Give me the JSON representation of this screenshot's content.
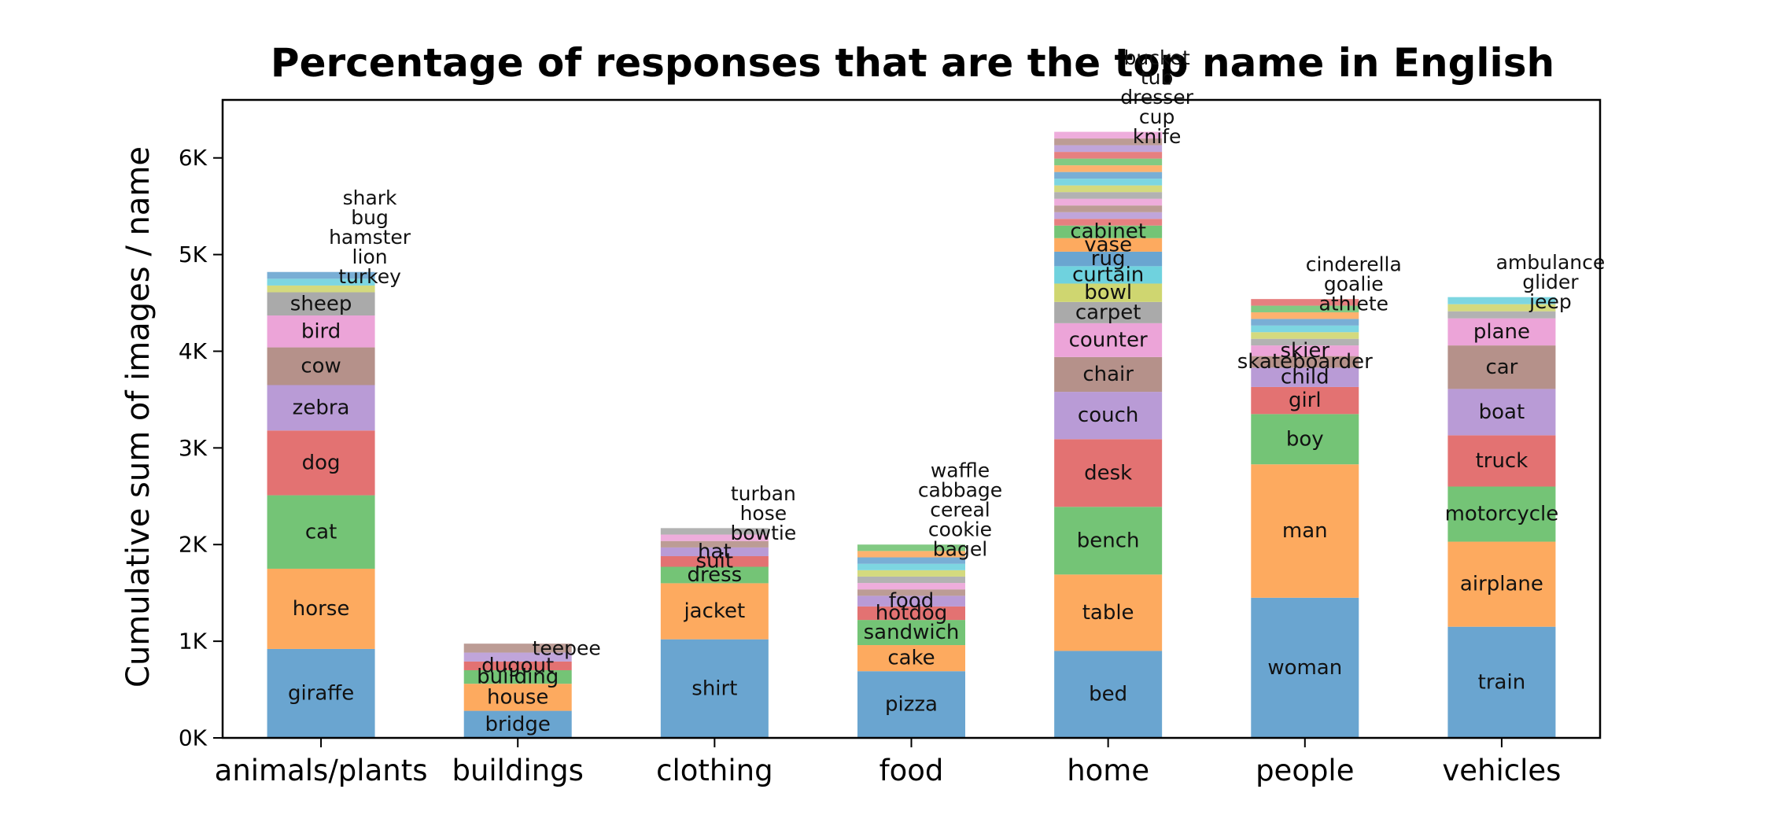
{
  "chart_data": {
    "type": "bar",
    "stacked": true,
    "title": "Percentage of responses that are the top name in English",
    "xlabel": "",
    "ylabel": "Cumulative sum of images / name",
    "ylim": [
      0,
      6600
    ],
    "yticks": [
      0,
      1000,
      2000,
      3000,
      4000,
      5000,
      6000
    ],
    "ytick_labels": [
      "0K",
      "1K",
      "2K",
      "3K",
      "4K",
      "5K",
      "6K"
    ],
    "grid": false,
    "legend": "none",
    "palette": [
      "#6aa5d0",
      "#fdaa5f",
      "#74c476",
      "#e37272",
      "#b99bd6",
      "#b5918a",
      "#eca4d8",
      "#aaaaaa",
      "#cfd670",
      "#6fd2de"
    ],
    "categories": [
      "animals/plants",
      "buildings",
      "clothing",
      "food",
      "home",
      "people",
      "vehicles"
    ],
    "stacks": [
      {
        "category": "animals/plants",
        "segments": [
          {
            "name": "giraffe",
            "value": 920
          },
          {
            "name": "horse",
            "value": 830
          },
          {
            "name": "cat",
            "value": 760
          },
          {
            "name": "dog",
            "value": 670
          },
          {
            "name": "zebra",
            "value": 470
          },
          {
            "name": "cow",
            "value": 390
          },
          {
            "name": "bird",
            "value": 330
          },
          {
            "name": "sheep",
            "value": 240
          }
        ],
        "tail_names": [
          "turkey",
          "lion",
          "hamster",
          "bug",
          "shark"
        ],
        "total": 4820
      },
      {
        "category": "buildings",
        "segments": [
          {
            "name": "bridge",
            "value": 280
          },
          {
            "name": "house",
            "value": 280
          },
          {
            "name": "building",
            "value": 140
          },
          {
            "name": "dugout",
            "value": 90
          }
        ],
        "tail_names": [
          "teepee"
        ],
        "total": 975
      },
      {
        "category": "clothing",
        "segments": [
          {
            "name": "shirt",
            "value": 1020
          },
          {
            "name": "jacket",
            "value": 580
          },
          {
            "name": "dress",
            "value": 170
          },
          {
            "name": "suit",
            "value": 110
          },
          {
            "name": "hat",
            "value": 90
          }
        ],
        "tail_names": [
          "bowtie",
          "hose",
          "turban"
        ],
        "total": 2170
      },
      {
        "category": "food",
        "segments": [
          {
            "name": "pizza",
            "value": 690
          },
          {
            "name": "cake",
            "value": 270
          },
          {
            "name": "sandwich",
            "value": 260
          },
          {
            "name": "hotdog",
            "value": 140
          },
          {
            "name": "food",
            "value": 110
          }
        ],
        "tail_names": [
          "bagel",
          "cookie",
          "cereal",
          "cabbage",
          "waffle"
        ],
        "total": 2000
      },
      {
        "category": "home",
        "segments": [
          {
            "name": "bed",
            "value": 900
          },
          {
            "name": "table",
            "value": 790
          },
          {
            "name": "bench",
            "value": 700
          },
          {
            "name": "desk",
            "value": 700
          },
          {
            "name": "couch",
            "value": 490
          },
          {
            "name": "chair",
            "value": 360
          },
          {
            "name": "counter",
            "value": 350
          },
          {
            "name": "carpet",
            "value": 220
          },
          {
            "name": "bowl",
            "value": 190
          },
          {
            "name": "curtain",
            "value": 180
          },
          {
            "name": "rug",
            "value": 150
          },
          {
            "name": "vase",
            "value": 140
          },
          {
            "name": "cabinet",
            "value": 130
          }
        ],
        "tail_names": [
          "knife",
          "cup",
          "dresser",
          "tub",
          "bucket"
        ],
        "total": 6270
      },
      {
        "category": "people",
        "segments": [
          {
            "name": "woman",
            "value": 1450
          },
          {
            "name": "man",
            "value": 1380
          },
          {
            "name": "boy",
            "value": 520
          },
          {
            "name": "girl",
            "value": 280
          },
          {
            "name": "child",
            "value": 200
          },
          {
            "name": "skateboarder",
            "value": 120
          },
          {
            "name": "skier",
            "value": 110
          }
        ],
        "tail_names": [
          "athlete",
          "goalie",
          "cinderella"
        ],
        "total": 4540
      },
      {
        "category": "vehicles",
        "segments": [
          {
            "name": "train",
            "value": 1150
          },
          {
            "name": "airplane",
            "value": 880
          },
          {
            "name": "motorcycle",
            "value": 570
          },
          {
            "name": "truck",
            "value": 530
          },
          {
            "name": "boat",
            "value": 480
          },
          {
            "name": "car",
            "value": 450
          },
          {
            "name": "plane",
            "value": 280
          }
        ],
        "tail_names": [
          "jeep",
          "glider",
          "ambulance"
        ],
        "total": 4560
      }
    ]
  }
}
